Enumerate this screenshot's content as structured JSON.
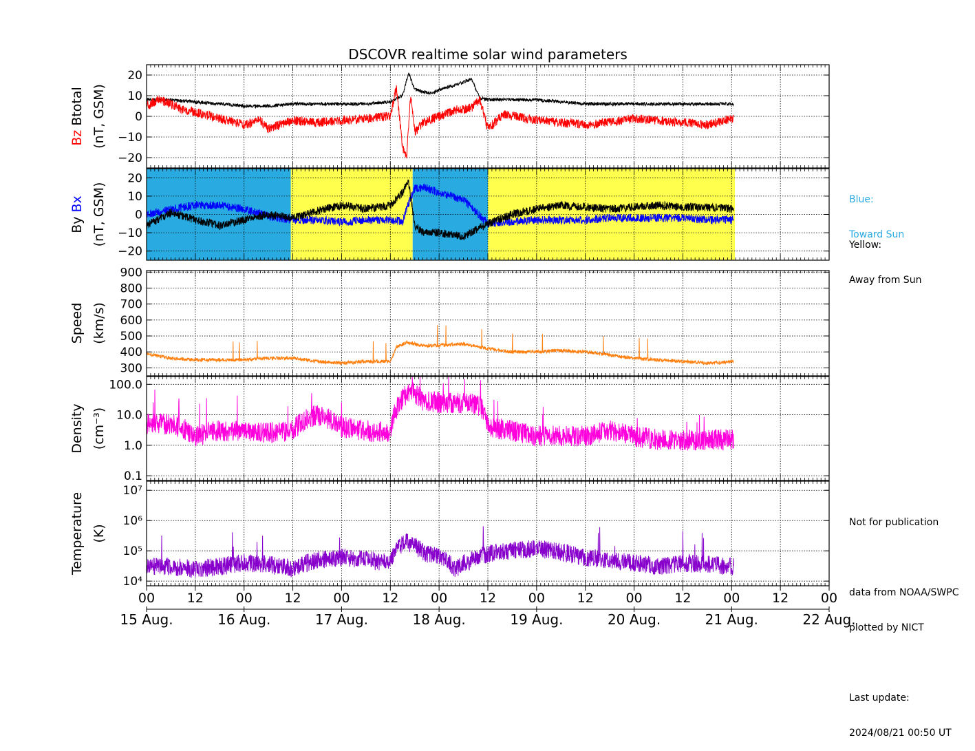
{
  "title": "DSCOVR realtime solar wind parameters",
  "colors": {
    "bz": "#ff0000",
    "btotal": "#000000",
    "bx": "#0000ff",
    "by": "#000000",
    "toward": "#29aae1",
    "away": "#ffff4d",
    "speed": "#ff7f0e",
    "density": "#ff00dd",
    "temperature": "#8800cc"
  },
  "side_notes": {
    "blue_line1": "Blue:",
    "blue_line2": "Toward Sun",
    "yellow_line1": "Yellow:",
    "yellow_line2": "Away from Sun",
    "not_for_pub": "Not for publication",
    "data_from": "data from NOAA/SWPC",
    "plotted_by": "plotted by NICT",
    "last_update_label": "Last update:",
    "last_update_value": "2024/08/21 00:50 UT"
  },
  "chart_data": {
    "type": "line",
    "title": "DSCOVR realtime solar wind parameters",
    "x_axis": {
      "unit": "hours from 2024-08-15 00:00 UT",
      "range": [
        0,
        168
      ],
      "tick_hours": [
        0,
        12,
        24,
        36,
        48,
        60,
        72,
        84,
        96,
        108,
        120,
        132,
        144,
        156,
        168
      ],
      "tick_labels": [
        "00",
        "12",
        "00",
        "12",
        "00",
        "12",
        "00",
        "12",
        "00",
        "12",
        "00",
        "12",
        "00",
        "12",
        "00"
      ],
      "day_hours": [
        0,
        24,
        48,
        72,
        96,
        120,
        144,
        168
      ],
      "day_labels": [
        "15 Aug.",
        "16 Aug.",
        "17 Aug.",
        "18 Aug.",
        "19 Aug.",
        "20 Aug.",
        "21 Aug.",
        "22 Aug."
      ],
      "data_end_hour": 144.8,
      "grid": true
    },
    "panels": [
      {
        "id": "magnetic",
        "ylabel": [
          "Bz",
          "Btotal",
          "(nT, GSM)"
        ],
        "ylim": [
          -25,
          25
        ],
        "yticks": [
          -20,
          -10,
          0,
          10,
          20
        ],
        "ytick_labels": [
          "−20",
          "−10",
          "0",
          "10",
          "20"
        ],
        "series": [
          {
            "name": "Btotal",
            "x": [
              0,
              6,
              12,
              18,
              24,
              30,
              36,
              42,
              48,
              54,
              60,
              63,
              64.5,
              66,
              70,
              72,
              76,
              80,
              82,
              84,
              90,
              96,
              102,
              108,
              114,
              120,
              126,
              132,
              138,
              144.5
            ],
            "y": [
              8,
              8,
              7,
              6,
              5,
              5,
              6,
              6,
              6,
              6,
              7,
              10,
              21,
              13,
              11,
              13,
              15,
              18,
              9,
              8,
              8,
              8,
              7,
              6,
              6,
              6,
              6,
              6,
              6,
              6
            ]
          },
          {
            "name": "Bz",
            "x": [
              0,
              3,
              6,
              9,
              12,
              18,
              24,
              28,
              30,
              36,
              42,
              48,
              54,
              60,
              61.5,
              63,
              64,
              65,
              66,
              68,
              72,
              76,
              80,
              82,
              84,
              88,
              96,
              102,
              108,
              114,
              120,
              126,
              132,
              138,
              144.5
            ],
            "y": [
              5,
              8,
              6,
              3,
              2,
              -1,
              -4,
              -2,
              -6,
              -2,
              -3,
              -2,
              -1,
              0,
              14,
              -15,
              -20,
              10,
              -8,
              -3,
              0,
              3,
              4,
              8,
              -6,
              1,
              -2,
              -3,
              -4,
              -3,
              -1,
              -2,
              -3,
              -4,
              -1
            ]
          }
        ]
      },
      {
        "id": "bxby",
        "ylabel": [
          "By",
          "Bx",
          "(nT, GSM)"
        ],
        "ylim": [
          -25,
          25
        ],
        "yticks": [
          -20,
          -10,
          0,
          10,
          20
        ],
        "ytick_labels": [
          "−20",
          "−10",
          "0",
          "10",
          "20"
        ],
        "sector_bands": [
          {
            "from": 0,
            "to": 35.5,
            "sector": "toward"
          },
          {
            "from": 35.5,
            "to": 65.5,
            "sector": "away"
          },
          {
            "from": 65.5,
            "to": 84,
            "sector": "toward"
          },
          {
            "from": 84,
            "to": 144.8,
            "sector": "away"
          }
        ],
        "series": [
          {
            "name": "Bx",
            "x": [
              0,
              6,
              12,
              18,
              24,
              30,
              36,
              42,
              48,
              54,
              60,
              63,
              64.5,
              66,
              68,
              72,
              78,
              84,
              90,
              96,
              102,
              108,
              114,
              120,
              126,
              132,
              138,
              144.5
            ],
            "y": [
              0,
              3,
              5,
              5,
              3,
              -1,
              -3,
              -3,
              -4,
              -3,
              -3,
              -4,
              6,
              14,
              15,
              12,
              8,
              -5,
              -4,
              -3,
              -3,
              -3,
              -2,
              -2,
              -2,
              -2,
              -3,
              -3
            ]
          },
          {
            "name": "By",
            "x": [
              0,
              6,
              12,
              18,
              24,
              30,
              36,
              42,
              48,
              54,
              60,
              63,
              64.5,
              66,
              68,
              72,
              78,
              84,
              90,
              96,
              102,
              108,
              114,
              120,
              126,
              132,
              138,
              144.5
            ],
            "y": [
              -6,
              1,
              -3,
              -6,
              -3,
              0,
              -2,
              2,
              5,
              3,
              5,
              12,
              18,
              -6,
              -10,
              -10,
              -12,
              -5,
              0,
              3,
              5,
              4,
              3,
              4,
              5,
              4,
              4,
              3
            ]
          }
        ]
      },
      {
        "id": "speed",
        "ylabel": [
          "Speed",
          "(km/s)"
        ],
        "ylim": [
          250,
          910
        ],
        "yticks": [
          300,
          400,
          500,
          600,
          700,
          800,
          900
        ],
        "ytick_labels": [
          "300",
          "400",
          "500",
          "600",
          "700",
          "800",
          "900"
        ],
        "series": [
          {
            "name": "Speed",
            "x": [
              0,
              6,
              12,
              18,
              24,
              30,
              36,
              42,
              48,
              54,
              60,
              61.5,
              64,
              68,
              72,
              78,
              84,
              90,
              96,
              102,
              108,
              114,
              120,
              126,
              132,
              138,
              144.5
            ],
            "y": [
              390,
              360,
              350,
              350,
              350,
              360,
              360,
              340,
              330,
              340,
              340,
              430,
              460,
              440,
              440,
              450,
              420,
              400,
              400,
              410,
              400,
              380,
              360,
              350,
              340,
              330,
              340
            ]
          }
        ]
      },
      {
        "id": "density",
        "ylabel": [
          "Density",
          "(cm⁻³)"
        ],
        "scale": "log",
        "ylim": [
          0.07,
          180
        ],
        "yticks": [
          0.1,
          1.0,
          10.0,
          100.0
        ],
        "ytick_labels": [
          "0.1",
          "1.0",
          "10.0",
          "100.0"
        ],
        "series": [
          {
            "name": "Density",
            "x": [
              0,
              6,
              12,
              18,
              24,
              30,
              36,
              42,
              48,
              54,
              60,
              61.5,
              65,
              68,
              72,
              78,
              82,
              84,
              90,
              96,
              102,
              108,
              114,
              120,
              126,
              132,
              138,
              144.5
            ],
            "y": [
              5,
              5,
              2,
              3,
              3,
              2.5,
              3,
              10,
              4,
              3,
              2.5,
              15,
              60,
              30,
              25,
              25,
              20,
              4,
              3,
              2,
              2,
              2,
              3,
              2,
              1.5,
              1.5,
              1.5,
              1.5
            ]
          }
        ]
      },
      {
        "id": "temperature",
        "ylabel": [
          "Temperature",
          "(K)"
        ],
        "scale": "log",
        "ylim": [
          7000,
          20000000
        ],
        "yticks": [
          10000,
          100000,
          1000000,
          10000000
        ],
        "ytick_labels": [
          "10⁴",
          "10⁵",
          "10⁶",
          "10⁷"
        ],
        "series": [
          {
            "name": "Temperature",
            "x": [
              0,
              6,
              12,
              18,
              24,
              30,
              36,
              42,
              48,
              54,
              60,
              62,
              64,
              68,
              72,
              76,
              80,
              84,
              90,
              96,
              102,
              108,
              114,
              120,
              126,
              132,
              138,
              144.5
            ],
            "y": [
              30000,
              30000,
              25000,
              30000,
              40000,
              35000,
              25000,
              50000,
              60000,
              50000,
              40000,
              120000,
              200000,
              90000,
              60000,
              25000,
              50000,
              80000,
              100000,
              120000,
              90000,
              60000,
              50000,
              40000,
              30000,
              40000,
              35000,
              30000
            ]
          }
        ]
      }
    ]
  }
}
